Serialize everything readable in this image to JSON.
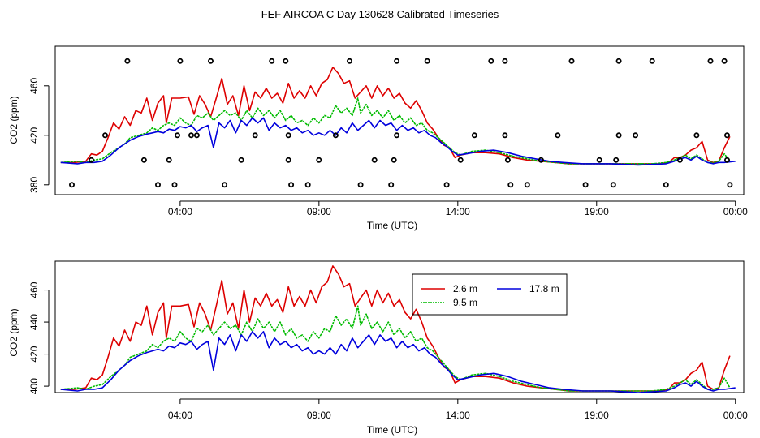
{
  "title": "FEF AIRCOA C  Day 130628  Calibrated Timeseries",
  "colors": {
    "red": "#dd0000",
    "green": "#00bb00",
    "blue": "#0000dd",
    "axis": "#000000"
  },
  "chart_data": [
    {
      "type": "line",
      "panel": "top",
      "ylabel": "CO2 (ppm)",
      "xlabel": "Time (UTC)",
      "xlim": [
        -0.5,
        24.3
      ],
      "ylim": [
        372,
        492
      ],
      "xticks": [
        4,
        9,
        14,
        19,
        24
      ],
      "xtick_labels": [
        "04:00",
        "09:00",
        "14:00",
        "19:00",
        "00:00"
      ],
      "yticks": [
        380,
        420,
        460
      ],
      "ytick_labels": [
        "380",
        "420",
        "460"
      ],
      "series_ref": "shared",
      "circles": [
        [
          0.1,
          380
        ],
        [
          0.8,
          400
        ],
        [
          1.3,
          420
        ],
        [
          2.1,
          480
        ],
        [
          2.7,
          400
        ],
        [
          3.2,
          380
        ],
        [
          3.6,
          400
        ],
        [
          3.8,
          380
        ],
        [
          3.9,
          420
        ],
        [
          4.0,
          480
        ],
        [
          4.4,
          420
        ],
        [
          4.6,
          420
        ],
        [
          5.1,
          480
        ],
        [
          5.6,
          380
        ],
        [
          6.2,
          400
        ],
        [
          6.7,
          420
        ],
        [
          7.3,
          480
        ],
        [
          7.8,
          480
        ],
        [
          7.9,
          420
        ],
        [
          7.9,
          400
        ],
        [
          8.0,
          380
        ],
        [
          8.6,
          380
        ],
        [
          9.0,
          400
        ],
        [
          9.6,
          420
        ],
        [
          10.1,
          480
        ],
        [
          10.5,
          380
        ],
        [
          11.0,
          400
        ],
        [
          11.6,
          380
        ],
        [
          11.7,
          400
        ],
        [
          11.8,
          420
        ],
        [
          11.8,
          480
        ],
        [
          12.9,
          480
        ],
        [
          13.6,
          380
        ],
        [
          14.1,
          400
        ],
        [
          14.6,
          420
        ],
        [
          15.2,
          480
        ],
        [
          15.7,
          480
        ],
        [
          15.7,
          420
        ],
        [
          15.8,
          400
        ],
        [
          15.9,
          380
        ],
        [
          16.5,
          380
        ],
        [
          17.0,
          400
        ],
        [
          17.6,
          420
        ],
        [
          18.1,
          480
        ],
        [
          18.6,
          380
        ],
        [
          19.1,
          400
        ],
        [
          19.6,
          380
        ],
        [
          19.7,
          400
        ],
        [
          19.8,
          420
        ],
        [
          19.8,
          480
        ],
        [
          20.4,
          420
        ],
        [
          21.0,
          480
        ],
        [
          21.5,
          380
        ],
        [
          22.0,
          400
        ],
        [
          22.6,
          420
        ],
        [
          23.1,
          480
        ],
        [
          23.6,
          480
        ],
        [
          23.7,
          400
        ],
        [
          23.7,
          420
        ],
        [
          23.8,
          380
        ]
      ]
    },
    {
      "type": "line",
      "panel": "bottom",
      "ylabel": "CO2 (ppm)",
      "xlabel": "Time (UTC)",
      "xlim": [
        -0.5,
        24.3
      ],
      "ylim": [
        396,
        478
      ],
      "xticks": [
        4,
        9,
        14,
        19,
        24
      ],
      "xtick_labels": [
        "04:00",
        "09:00",
        "14:00",
        "19:00",
        "00:00"
      ],
      "yticks": [
        400,
        420,
        440,
        460
      ],
      "ytick_labels": [
        "400",
        "420",
        "440",
        "460"
      ],
      "legend": {
        "entries": [
          {
            "label": "2.6 m",
            "series": "red"
          },
          {
            "label": "9.5 m",
            "series": "green"
          },
          {
            "label": "17.8 m",
            "series": "blue"
          }
        ]
      },
      "series_ref": "shared"
    }
  ],
  "series": [
    {
      "name": "2.6 m",
      "key": "red",
      "points": [
        [
          -0.3,
          398
        ],
        [
          0.2,
          398
        ],
        [
          0.6,
          399
        ],
        [
          0.8,
          405
        ],
        [
          1.0,
          404
        ],
        [
          1.2,
          407
        ],
        [
          1.4,
          418
        ],
        [
          1.6,
          430
        ],
        [
          1.8,
          425
        ],
        [
          2.0,
          435
        ],
        [
          2.2,
          428
        ],
        [
          2.4,
          440
        ],
        [
          2.6,
          438
        ],
        [
          2.8,
          450
        ],
        [
          3.0,
          432
        ],
        [
          3.2,
          446
        ],
        [
          3.4,
          452
        ],
        [
          3.5,
          430
        ],
        [
          3.7,
          450
        ],
        [
          4.0,
          450
        ],
        [
          4.3,
          451
        ],
        [
          4.5,
          437
        ],
        [
          4.7,
          452
        ],
        [
          4.9,
          445
        ],
        [
          5.1,
          435
        ],
        [
          5.3,
          450
        ],
        [
          5.5,
          466
        ],
        [
          5.7,
          445
        ],
        [
          5.9,
          452
        ],
        [
          6.1,
          436
        ],
        [
          6.3,
          460
        ],
        [
          6.5,
          440
        ],
        [
          6.7,
          455
        ],
        [
          6.9,
          450
        ],
        [
          7.1,
          458
        ],
        [
          7.3,
          450
        ],
        [
          7.5,
          454
        ],
        [
          7.7,
          446
        ],
        [
          7.9,
          462
        ],
        [
          8.1,
          450
        ],
        [
          8.3,
          456
        ],
        [
          8.5,
          450
        ],
        [
          8.7,
          460
        ],
        [
          8.9,
          452
        ],
        [
          9.1,
          462
        ],
        [
          9.3,
          465
        ],
        [
          9.5,
          475
        ],
        [
          9.7,
          470
        ],
        [
          9.9,
          462
        ],
        [
          10.1,
          464
        ],
        [
          10.3,
          450
        ],
        [
          10.5,
          455
        ],
        [
          10.7,
          460
        ],
        [
          10.9,
          450
        ],
        [
          11.1,
          460
        ],
        [
          11.3,
          452
        ],
        [
          11.5,
          458
        ],
        [
          11.7,
          450
        ],
        [
          11.9,
          454
        ],
        [
          12.1,
          446
        ],
        [
          12.3,
          442
        ],
        [
          12.5,
          448
        ],
        [
          12.7,
          440
        ],
        [
          12.9,
          430
        ],
        [
          13.1,
          425
        ],
        [
          13.3,
          418
        ],
        [
          13.5,
          412
        ],
        [
          13.7,
          410
        ],
        [
          13.9,
          402
        ],
        [
          14.1,
          404
        ],
        [
          14.5,
          406
        ],
        [
          15.0,
          406
        ],
        [
          15.5,
          405
        ],
        [
          16.0,
          402
        ],
        [
          16.5,
          400
        ],
        [
          17.0,
          399
        ],
        [
          17.5,
          398
        ],
        [
          18.0,
          397
        ],
        [
          19.0,
          397
        ],
        [
          20.0,
          397
        ],
        [
          20.8,
          397
        ],
        [
          21.2,
          397
        ],
        [
          21.6,
          398
        ],
        [
          21.8,
          402
        ],
        [
          22.0,
          402
        ],
        [
          22.2,
          404
        ],
        [
          22.4,
          408
        ],
        [
          22.6,
          410
        ],
        [
          22.8,
          415
        ],
        [
          23.0,
          400
        ],
        [
          23.2,
          398
        ],
        [
          23.4,
          399
        ],
        [
          23.6,
          410
        ],
        [
          23.8,
          419
        ]
      ]
    },
    {
      "name": "9.5 m",
      "key": "green",
      "points": [
        [
          -0.3,
          398
        ],
        [
          0.3,
          399
        ],
        [
          0.6,
          398
        ],
        [
          0.9,
          400
        ],
        [
          1.2,
          401
        ],
        [
          1.5,
          406
        ],
        [
          1.8,
          410
        ],
        [
          2.0,
          413
        ],
        [
          2.2,
          418
        ],
        [
          2.5,
          420
        ],
        [
          2.8,
          422
        ],
        [
          3.0,
          426
        ],
        [
          3.2,
          424
        ],
        [
          3.4,
          428
        ],
        [
          3.6,
          430
        ],
        [
          3.8,
          428
        ],
        [
          4.0,
          434
        ],
        [
          4.2,
          430
        ],
        [
          4.4,
          428
        ],
        [
          4.6,
          436
        ],
        [
          4.8,
          434
        ],
        [
          5.0,
          438
        ],
        [
          5.2,
          432
        ],
        [
          5.4,
          436
        ],
        [
          5.6,
          440
        ],
        [
          5.8,
          436
        ],
        [
          6.0,
          438
        ],
        [
          6.2,
          432
        ],
        [
          6.4,
          440
        ],
        [
          6.6,
          434
        ],
        [
          6.8,
          442
        ],
        [
          7.0,
          436
        ],
        [
          7.2,
          440
        ],
        [
          7.4,
          434
        ],
        [
          7.6,
          440
        ],
        [
          7.8,
          432
        ],
        [
          8.0,
          436
        ],
        [
          8.2,
          430
        ],
        [
          8.4,
          432
        ],
        [
          8.6,
          428
        ],
        [
          8.8,
          434
        ],
        [
          9.0,
          430
        ],
        [
          9.2,
          436
        ],
        [
          9.4,
          434
        ],
        [
          9.6,
          444
        ],
        [
          9.8,
          438
        ],
        [
          10.0,
          442
        ],
        [
          10.2,
          436
        ],
        [
          10.4,
          450
        ],
        [
          10.5,
          438
        ],
        [
          10.7,
          445
        ],
        [
          10.9,
          436
        ],
        [
          11.1,
          440
        ],
        [
          11.3,
          434
        ],
        [
          11.5,
          440
        ],
        [
          11.7,
          432
        ],
        [
          11.9,
          436
        ],
        [
          12.1,
          430
        ],
        [
          12.3,
          434
        ],
        [
          12.5,
          428
        ],
        [
          12.7,
          430
        ],
        [
          12.9,
          424
        ],
        [
          13.1,
          422
        ],
        [
          13.3,
          418
        ],
        [
          13.5,
          414
        ],
        [
          13.7,
          410
        ],
        [
          13.9,
          406
        ],
        [
          14.1,
          404
        ],
        [
          14.5,
          407
        ],
        [
          15.0,
          408
        ],
        [
          15.5,
          406
        ],
        [
          16.0,
          403
        ],
        [
          16.5,
          401
        ],
        [
          17.0,
          399
        ],
        [
          17.5,
          398
        ],
        [
          18.0,
          397
        ],
        [
          19.0,
          397
        ],
        [
          20.0,
          397
        ],
        [
          21.0,
          397
        ],
        [
          21.5,
          398
        ],
        [
          21.8,
          400
        ],
        [
          22.0,
          402
        ],
        [
          22.2,
          404
        ],
        [
          22.4,
          401
        ],
        [
          22.6,
          404
        ],
        [
          22.8,
          401
        ],
        [
          23.0,
          398
        ],
        [
          23.2,
          398
        ],
        [
          23.4,
          399
        ],
        [
          23.6,
          405
        ],
        [
          23.8,
          399
        ]
      ]
    },
    {
      "name": "17.8 m",
      "key": "blue",
      "points": [
        [
          -0.3,
          398
        ],
        [
          0.3,
          397
        ],
        [
          0.6,
          398
        ],
        [
          0.9,
          398
        ],
        [
          1.2,
          399
        ],
        [
          1.5,
          404
        ],
        [
          1.8,
          410
        ],
        [
          2.0,
          413
        ],
        [
          2.2,
          416
        ],
        [
          2.5,
          419
        ],
        [
          2.8,
          421
        ],
        [
          3.0,
          422
        ],
        [
          3.2,
          423
        ],
        [
          3.4,
          422
        ],
        [
          3.6,
          425
        ],
        [
          3.8,
          424
        ],
        [
          4.0,
          427
        ],
        [
          4.2,
          426
        ],
        [
          4.4,
          428
        ],
        [
          4.6,
          423
        ],
        [
          4.8,
          426
        ],
        [
          5.0,
          428
        ],
        [
          5.2,
          410
        ],
        [
          5.4,
          430
        ],
        [
          5.6,
          426
        ],
        [
          5.8,
          432
        ],
        [
          6.0,
          422
        ],
        [
          6.2,
          432
        ],
        [
          6.4,
          428
        ],
        [
          6.6,
          434
        ],
        [
          6.8,
          430
        ],
        [
          7.0,
          434
        ],
        [
          7.2,
          424
        ],
        [
          7.4,
          430
        ],
        [
          7.6,
          426
        ],
        [
          7.8,
          428
        ],
        [
          8.0,
          424
        ],
        [
          8.2,
          426
        ],
        [
          8.4,
          422
        ],
        [
          8.6,
          424
        ],
        [
          8.8,
          420
        ],
        [
          9.0,
          422
        ],
        [
          9.2,
          420
        ],
        [
          9.4,
          424
        ],
        [
          9.6,
          420
        ],
        [
          9.8,
          426
        ],
        [
          10.0,
          422
        ],
        [
          10.2,
          430
        ],
        [
          10.4,
          424
        ],
        [
          10.6,
          428
        ],
        [
          10.8,
          432
        ],
        [
          11.0,
          426
        ],
        [
          11.2,
          432
        ],
        [
          11.4,
          428
        ],
        [
          11.6,
          430
        ],
        [
          11.8,
          424
        ],
        [
          12.0,
          428
        ],
        [
          12.2,
          424
        ],
        [
          12.4,
          426
        ],
        [
          12.6,
          422
        ],
        [
          12.8,
          424
        ],
        [
          13.0,
          420
        ],
        [
          13.2,
          418
        ],
        [
          13.4,
          414
        ],
        [
          13.6,
          411
        ],
        [
          13.8,
          407
        ],
        [
          14.0,
          404
        ],
        [
          14.3,
          405
        ],
        [
          14.8,
          407
        ],
        [
          15.3,
          408
        ],
        [
          15.8,
          406
        ],
        [
          16.3,
          403
        ],
        [
          16.8,
          401
        ],
        [
          17.3,
          399
        ],
        [
          17.8,
          398
        ],
        [
          18.5,
          397
        ],
        [
          19.5,
          397
        ],
        [
          20.5,
          396
        ],
        [
          21.5,
          397
        ],
        [
          21.8,
          399
        ],
        [
          22.0,
          401
        ],
        [
          22.2,
          402
        ],
        [
          22.4,
          400
        ],
        [
          22.6,
          403
        ],
        [
          22.8,
          400
        ],
        [
          23.0,
          398
        ],
        [
          23.2,
          397
        ],
        [
          23.4,
          398
        ],
        [
          23.6,
          398
        ],
        [
          24.0,
          399
        ]
      ]
    }
  ]
}
